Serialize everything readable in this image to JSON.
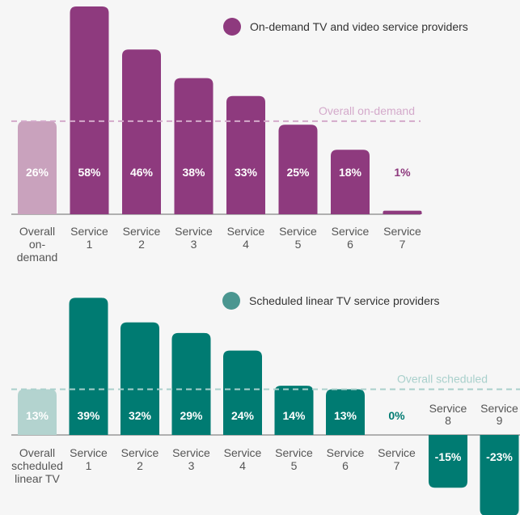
{
  "colors": {
    "ondemand": "#8e3a7e",
    "ondemand_overall": "#c9a2bd",
    "ondemand_ref": "#d4aacb",
    "scheduled": "#007b72",
    "scheduled_overall": "#b3d3cf",
    "scheduled_ref": "#a9d0cc",
    "legend_scheduled": "#4a9690",
    "axis": "#999999"
  },
  "chart_data": [
    {
      "type": "bar",
      "legend": "On-demand TV and video service providers",
      "reference_label": "Overall on-demand",
      "reference_value": 26,
      "categories": [
        [
          "Overall",
          "on-",
          "demand"
        ],
        [
          "Service",
          "1"
        ],
        [
          "Service",
          "2"
        ],
        [
          "Service",
          "3"
        ],
        [
          "Service",
          "4"
        ],
        [
          "Service",
          "5"
        ],
        [
          "Service",
          "6"
        ],
        [
          "Service",
          "7"
        ]
      ],
      "values": [
        26,
        58,
        46,
        38,
        33,
        25,
        18,
        1
      ],
      "labels": [
        "26%",
        "58%",
        "46%",
        "38%",
        "33%",
        "25%",
        "18%",
        "1%"
      ]
    },
    {
      "type": "bar",
      "legend": "Scheduled linear TV service providers",
      "reference_label": "Overall scheduled",
      "reference_value": 13,
      "categories": [
        [
          "Overall",
          "scheduled",
          "linear TV"
        ],
        [
          "Service",
          "1"
        ],
        [
          "Service",
          "2"
        ],
        [
          "Service",
          "3"
        ],
        [
          "Service",
          "4"
        ],
        [
          "Service",
          "5"
        ],
        [
          "Service",
          "6"
        ],
        [
          "Service",
          "7"
        ],
        [
          "Service",
          "8"
        ],
        [
          "Service",
          "9"
        ]
      ],
      "values": [
        13,
        39,
        32,
        29,
        24,
        14,
        13,
        0,
        -15,
        -23
      ],
      "labels": [
        "13%",
        "39%",
        "32%",
        "29%",
        "24%",
        "14%",
        "13%",
        "0%",
        "-15%",
        "-23%"
      ]
    }
  ]
}
